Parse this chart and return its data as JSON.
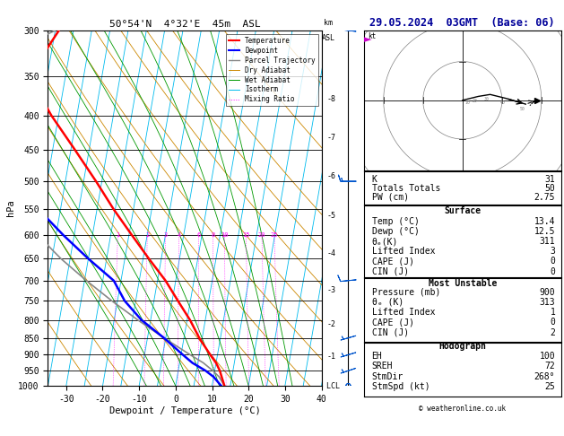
{
  "title_left": "50°54'N  4°32'E  45m  ASL",
  "title_right": "29.05.2024  03GMT  (Base: 06)",
  "xlabel": "Dewpoint / Temperature (°C)",
  "ylabel_left": "hPa",
  "temp_xlim": [
    -35,
    40
  ],
  "pressure_ylim": [
    1000,
    300
  ],
  "temp_profile": {
    "pressure": [
      1000,
      970,
      950,
      925,
      900,
      850,
      800,
      750,
      700,
      650,
      600,
      550,
      500,
      450,
      400,
      350,
      300
    ],
    "temp": [
      13.4,
      12.2,
      11.4,
      10.0,
      8.0,
      4.2,
      0.8,
      -3.4,
      -7.8,
      -13.4,
      -19.2,
      -25.4,
      -31.6,
      -38.8,
      -47.0,
      -55.0,
      -49.0
    ]
  },
  "dewp_profile": {
    "pressure": [
      1000,
      970,
      950,
      925,
      900,
      850,
      800,
      750,
      700,
      650,
      600,
      550,
      500,
      450,
      400,
      350,
      300
    ],
    "temp": [
      12.5,
      10.0,
      7.5,
      3.5,
      0.5,
      -5.5,
      -12.5,
      -18.0,
      -22.0,
      -30.0,
      -38.0,
      -46.0,
      -52.0,
      -56.0,
      -60.0,
      -65.0,
      -60.0
    ]
  },
  "parcel_profile": {
    "pressure": [
      1000,
      970,
      950,
      925,
      900,
      850,
      800,
      750,
      700,
      650,
      600,
      550,
      500,
      450,
      400,
      350,
      300
    ],
    "temp": [
      13.4,
      11.5,
      9.5,
      6.5,
      2.5,
      -5.5,
      -13.5,
      -21.5,
      -29.5,
      -37.5,
      -45.0,
      -52.0,
      -58.5,
      -64.5,
      -70.0,
      -75.0,
      -50.0
    ]
  },
  "temp_color": "#ff0000",
  "dewp_color": "#0000ff",
  "parcel_color": "#888888",
  "isotherm_color": "#00bbee",
  "dry_adiabat_color": "#cc8800",
  "wet_adiabat_color": "#009900",
  "mixing_ratio_color": "#ff00ff",
  "background_color": "#ffffff",
  "major_p": [
    300,
    350,
    400,
    450,
    500,
    550,
    600,
    650,
    700,
    750,
    800,
    850,
    900,
    950,
    1000
  ],
  "skew_factor": 32.5,
  "isotherm_temps": [
    -60,
    -55,
    -50,
    -45,
    -40,
    -35,
    -30,
    -25,
    -20,
    -15,
    -10,
    -5,
    0,
    5,
    10,
    15,
    20,
    25,
    30,
    35,
    40,
    45
  ],
  "dry_thetas_K": [
    250,
    260,
    270,
    280,
    290,
    300,
    310,
    320,
    330,
    340,
    350,
    360,
    380,
    400,
    420
  ],
  "wet_temps_C": [
    -8,
    -4,
    0,
    4,
    8,
    12,
    16,
    20,
    24,
    28,
    32
  ],
  "mixing_ratio_vals": [
    1,
    2,
    3,
    4,
    6,
    8,
    10,
    15,
    20,
    25
  ],
  "km_labels": [
    1,
    2,
    3,
    4,
    5,
    6,
    7,
    8
  ],
  "km_pressures": [
    905,
    812,
    724,
    638,
    562,
    492,
    432,
    378
  ],
  "stats": {
    "K": 31,
    "Totals Totals": 50,
    "PW (cm)": 2.75,
    "Surface_Temp": 13.4,
    "Surface_Dewp": 12.5,
    "Surface_theta_e": 311,
    "Surface_LI": 3,
    "Surface_CAPE": 0,
    "Surface_CIN": 0,
    "MU_Pressure": 900,
    "MU_theta_e": 313,
    "MU_LI": 1,
    "MU_CAPE": 0,
    "MU_CIN": 2,
    "EH": 100,
    "SREH": 72,
    "StmDir": 268,
    "StmSpd": 25
  },
  "wind_barb_pressures": [
    1000,
    950,
    900,
    850,
    700,
    500,
    300
  ],
  "wind_barb_u": [
    1.5,
    3.0,
    5.0,
    7.0,
    10.0,
    14.0,
    18.0
  ],
  "wind_barb_v": [
    0.5,
    1.0,
    1.5,
    2.0,
    1.0,
    0.0,
    -2.0
  ],
  "hodo_wind_u": [
    0.0,
    2.0,
    4.0,
    7.0,
    11.0,
    16.0
  ],
  "hodo_wind_v": [
    0.0,
    0.5,
    1.0,
    1.5,
    0.5,
    -1.0
  ],
  "hodo_storm_u": 19.0,
  "hodo_storm_v": 0.0
}
